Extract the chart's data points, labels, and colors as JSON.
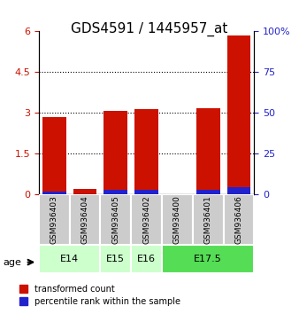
{
  "title": "GDS4591 / 1445957_at",
  "samples": [
    "GSM936403",
    "GSM936404",
    "GSM936405",
    "GSM936402",
    "GSM936400",
    "GSM936401",
    "GSM936406"
  ],
  "red_values": [
    2.85,
    0.22,
    3.08,
    3.13,
    0.02,
    3.18,
    5.85
  ],
  "blue_values": [
    1.72,
    0.18,
    2.98,
    3.08,
    0.08,
    3.22,
    4.62
  ],
  "blue_scale_factor": 0.06,
  "ylim_left": [
    0,
    6
  ],
  "ylim_right": [
    0,
    100
  ],
  "yticks_left": [
    0,
    1.5,
    3,
    4.5,
    6
  ],
  "yticks_right": [
    0,
    25,
    50,
    75,
    100
  ],
  "ytick_labels_left": [
    "0",
    "1.5",
    "3",
    "4.5",
    "6"
  ],
  "ytick_labels_right": [
    "0",
    "25",
    "50",
    "75",
    "100%"
  ],
  "age_groups": [
    {
      "label": "E14",
      "start": 0,
      "end": 2,
      "color": "#ccffcc"
    },
    {
      "label": "E15",
      "start": 2,
      "end": 3,
      "color": "#ccffcc"
    },
    {
      "label": "E16",
      "start": 3,
      "end": 4,
      "color": "#ccffcc"
    },
    {
      "label": "E17.5",
      "start": 4,
      "end": 7,
      "color": "#55dd55"
    }
  ],
  "bar_width": 0.35,
  "red_color": "#cc1100",
  "blue_color": "#2222cc",
  "bg_color": "#ffffff",
  "sample_bg": "#cccccc",
  "legend_red": "transformed count",
  "legend_blue": "percentile rank within the sample",
  "age_label": "age",
  "grid_color": "#000000",
  "title_fontsize": 11,
  "tick_fontsize": 8
}
